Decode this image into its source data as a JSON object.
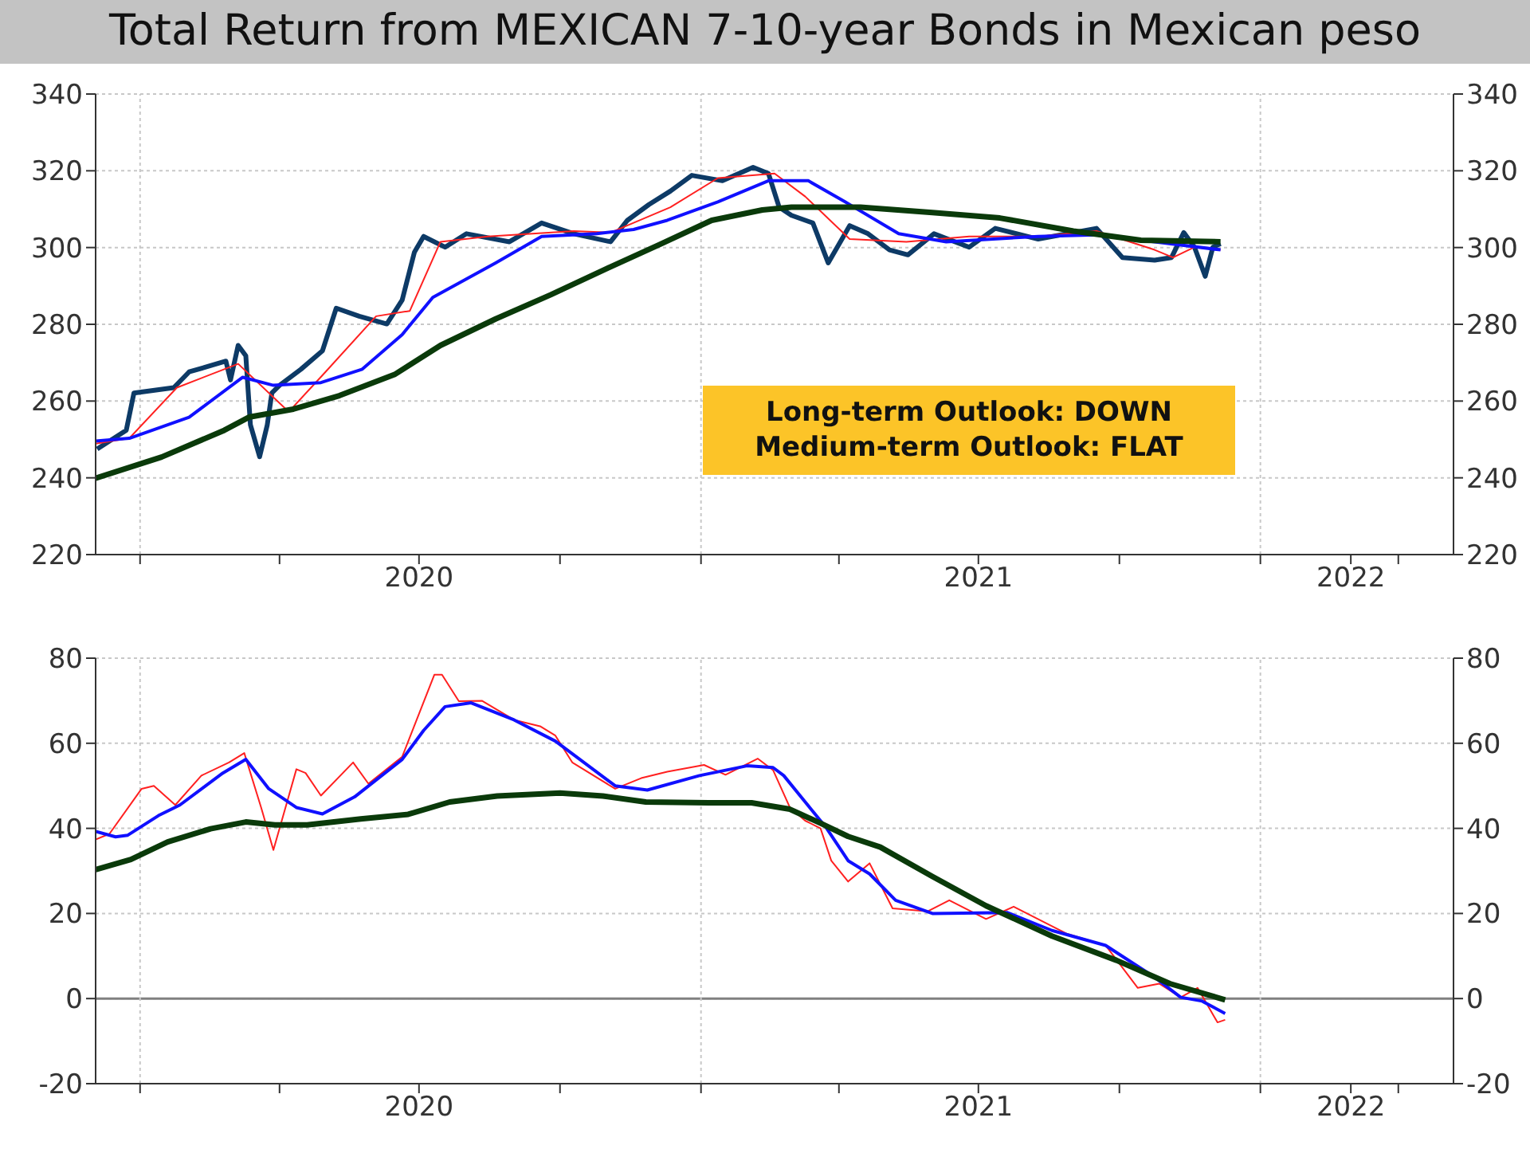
{
  "chart_data": [
    {
      "type": "line",
      "title": "Total Return from MEXICAN 7-10-year Bonds in Mexican peso",
      "annotations": [
        "Long-term Outlook: DOWN",
        "Medium-term Outlook: FLAT"
      ],
      "xlim": [
        "2019-12-03",
        "2022-05-07"
      ],
      "xticks": [
        {
          "value": "2020-01-01",
          "label": null
        },
        {
          "value": "2020-04-01",
          "label": null
        },
        {
          "value": "2020-07-01",
          "label": "2020"
        },
        {
          "value": "2020-10-01",
          "label": null
        },
        {
          "value": "2021-01-01",
          "label": null
        },
        {
          "value": "2021-04-01",
          "label": null
        },
        {
          "value": "2021-07-01",
          "label": "2021"
        },
        {
          "value": "2021-10-01",
          "label": null
        },
        {
          "value": "2022-01-01",
          "label": null
        },
        {
          "value": "2022-03-01",
          "label": "2022"
        },
        {
          "value": "2022-04-01",
          "label": null
        }
      ],
      "ylim": [
        220,
        340
      ],
      "yticks": [
        220,
        240,
        260,
        280,
        300,
        320,
        340
      ],
      "y2lim": [
        220,
        340
      ],
      "y2ticks": [
        220,
        240,
        260,
        280,
        300,
        320,
        340
      ],
      "grid": "y",
      "legend": false,
      "ref_lines": [
        {
          "axis": "x",
          "value": "2020-01-01",
          "color": "#c8c8c8",
          "line_style": "dotted"
        },
        {
          "axis": "x",
          "value": "2021-01-01",
          "color": "#c8c8c8",
          "line_style": "dotted"
        },
        {
          "axis": "x",
          "value": "2022-01-01",
          "color": "#c8c8c8",
          "line_style": "dotted"
        }
      ],
      "series": [
        {
          "color": "#0d3a66",
          "x": [
            "2019-12-04",
            "2019-12-23",
            "2019-12-28",
            "2020-01-23",
            "2020-02-02",
            "2020-02-26",
            "2020-02-29",
            "2020-03-05",
            "2020-03-10",
            "2020-03-13",
            "2020-03-19",
            "2020-03-24",
            "2020-03-27",
            "2020-04-01",
            "2020-04-15",
            "2020-04-29",
            "2020-05-08",
            "2020-05-23",
            "2020-06-10",
            "2020-06-20",
            "2020-06-28",
            "2020-07-04",
            "2020-07-18",
            "2020-08-01",
            "2020-08-29",
            "2020-09-19",
            "2020-10-10",
            "2020-11-03",
            "2020-11-14",
            "2020-11-28",
            "2020-12-12",
            "2020-12-26",
            "2021-01-15",
            "2021-02-04",
            "2021-02-14",
            "2021-02-21",
            "2021-03-01",
            "2021-03-15",
            "2021-03-25",
            "2021-04-08",
            "2021-04-20",
            "2021-05-04",
            "2021-05-16",
            "2021-06-02",
            "2021-06-25",
            "2021-07-12",
            "2021-08-09",
            "2021-09-16",
            "2021-10-03",
            "2021-10-24",
            "2021-11-04",
            "2021-11-12",
            "2021-11-19",
            "2021-11-26",
            "2021-12-01",
            "2021-12-06"
          ],
          "values": [
            247.5,
            252.4,
            262.1,
            263.5,
            267.6,
            270.4,
            265.5,
            274.5,
            271.8,
            253.8,
            245.5,
            253.8,
            262.1,
            264.1,
            268.3,
            273.1,
            284.2,
            282.1,
            280.1,
            286.3,
            298.8,
            302.9,
            300.1,
            303.6,
            301.5,
            306.4,
            303.6,
            301.5,
            307.1,
            311.2,
            314.7,
            318.8,
            317.4,
            320.9,
            319.3,
            310.5,
            308.4,
            306.4,
            296,
            305.7,
            303.6,
            299.4,
            298.1,
            303.6,
            300.1,
            305,
            302.2,
            305,
            297.4,
            296.7,
            297.4,
            303.9,
            300.1,
            292.5,
            300.1,
            301
          ]
        },
        {
          "color": "#ff2020",
          "x": [
            "2019-12-03",
            "2019-12-25",
            "2020-01-25",
            "2020-03-05",
            "2020-04-07",
            "2020-05-01",
            "2020-06-03",
            "2020-06-25",
            "2020-07-15",
            "2020-08-15",
            "2020-10-10",
            "2020-11-03",
            "2020-12-12",
            "2021-01-12",
            "2021-02-18",
            "2021-03-10",
            "2021-04-08",
            "2021-05-15",
            "2021-06-25",
            "2021-08-09",
            "2021-09-16",
            "2021-10-24",
            "2021-11-05",
            "2021-11-19",
            "2021-12-06"
          ],
          "values": [
            248.9,
            250.3,
            263.5,
            269.7,
            257.2,
            267.6,
            282.1,
            283.5,
            301.5,
            302.9,
            304.3,
            303.9,
            310.5,
            318.1,
            319.3,
            313.3,
            302.2,
            301.5,
            302.9,
            302.9,
            304.3,
            299.4,
            297.4,
            300.1,
            299.4
          ]
        },
        {
          "color": "#1010ff",
          "x": [
            "2019-12-03",
            "2019-12-25",
            "2020-02-02",
            "2020-03-08",
            "2020-03-28",
            "2020-04-28",
            "2020-05-25",
            "2020-06-20",
            "2020-07-10",
            "2020-08-20",
            "2020-09-19",
            "2020-10-25",
            "2020-11-18",
            "2020-12-10",
            "2021-01-12",
            "2021-02-14",
            "2021-03-12",
            "2021-04-05",
            "2021-05-10",
            "2021-06-10",
            "2021-08-09",
            "2021-09-16",
            "2021-10-24",
            "2021-12-06"
          ],
          "values": [
            249.6,
            250.3,
            255.8,
            266.2,
            264.1,
            264.8,
            268.3,
            277.3,
            287,
            296,
            302.9,
            303.6,
            304.7,
            307.1,
            311.9,
            317.4,
            317.4,
            311.9,
            303.6,
            301.5,
            302.9,
            303.3,
            301.5,
            299.4
          ]
        },
        {
          "color": "#0a3a0a",
          "x": [
            "2019-12-03",
            "2020-01-15",
            "2020-02-25",
            "2020-03-12",
            "2020-04-10",
            "2020-05-10",
            "2020-06-15",
            "2020-07-15",
            "2020-08-20",
            "2020-09-25",
            "2020-11-01",
            "2020-12-05",
            "2021-01-08",
            "2021-02-10",
            "2021-03-01",
            "2021-04-15",
            "2021-06-01",
            "2021-07-15",
            "2021-09-01",
            "2021-10-15",
            "2021-12-06"
          ],
          "values": [
            239.9,
            245.4,
            252.4,
            255.8,
            257.9,
            261.4,
            266.9,
            274.5,
            281.4,
            287.7,
            294.6,
            300.8,
            307.1,
            309.8,
            310.5,
            310.5,
            309.1,
            307.7,
            304.3,
            301.9,
            301.5
          ]
        }
      ]
    },
    {
      "type": "line",
      "xlim": [
        "2019-12-03",
        "2022-05-07"
      ],
      "xticks": [
        {
          "value": "2020-01-01",
          "label": null
        },
        {
          "value": "2020-04-01",
          "label": null
        },
        {
          "value": "2020-07-01",
          "label": "2020"
        },
        {
          "value": "2020-10-01",
          "label": null
        },
        {
          "value": "2021-01-01",
          "label": null
        },
        {
          "value": "2021-04-01",
          "label": null
        },
        {
          "value": "2021-07-01",
          "label": "2021"
        },
        {
          "value": "2021-10-01",
          "label": null
        },
        {
          "value": "2022-01-01",
          "label": null
        },
        {
          "value": "2022-03-01",
          "label": "2022"
        },
        {
          "value": "2022-04-01",
          "label": null
        }
      ],
      "ylim": [
        -20,
        80
      ],
      "yticks": [
        -20,
        0,
        20,
        40,
        60,
        80
      ],
      "y2lim": [
        -20,
        80
      ],
      "y2ticks": [
        -20,
        0,
        20,
        40,
        60,
        80
      ],
      "grid": "y",
      "legend": false,
      "ref_lines": [
        {
          "axis": "y",
          "value": 0,
          "color": "#808080",
          "line_style": "solid"
        },
        {
          "axis": "x",
          "value": "2020-01-01",
          "color": "#c8c8c8",
          "line_style": "dotted"
        },
        {
          "axis": "x",
          "value": "2021-01-01",
          "color": "#c8c8c8",
          "line_style": "dotted"
        },
        {
          "axis": "x",
          "value": "2022-01-01",
          "color": "#c8c8c8",
          "line_style": "dotted"
        }
      ],
      "series": [
        {
          "color": "#ff2020",
          "x": [
            "2019-12-03",
            "2019-12-12",
            "2020-01-02",
            "2020-01-10",
            "2020-01-24",
            "2020-02-10",
            "2020-02-28",
            "2020-03-09",
            "2020-03-20",
            "2020-03-28",
            "2020-04-12",
            "2020-04-18",
            "2020-04-28",
            "2020-05-19",
            "2020-05-29",
            "2020-06-20",
            "2020-07-11",
            "2020-07-16",
            "2020-07-27",
            "2020-08-11",
            "2020-09-01",
            "2020-09-18",
            "2020-09-28",
            "2020-10-09",
            "2020-11-06",
            "2020-11-23",
            "2020-12-10",
            "2021-01-03",
            "2021-01-17",
            "2021-02-07",
            "2021-02-17",
            "2021-02-28",
            "2021-03-10",
            "2021-03-20",
            "2021-03-27",
            "2021-04-07",
            "2021-04-21",
            "2021-05-06",
            "2021-05-29",
            "2021-06-12",
            "2021-07-06",
            "2021-07-24",
            "2021-08-28",
            "2021-09-22",
            "2021-10-13",
            "2021-10-27",
            "2021-11-10",
            "2021-11-21",
            "2021-12-04",
            "2021-12-09"
          ],
          "values": [
            37.4,
            38.7,
            49.3,
            50,
            45.5,
            52.4,
            55.5,
            57.7,
            44.9,
            34.9,
            53.9,
            53,
            47.7,
            55.5,
            50.5,
            56.8,
            76.1,
            76.1,
            69.9,
            70,
            65.5,
            64,
            61.8,
            55.5,
            49.3,
            51.8,
            53.3,
            54.9,
            52.6,
            56.4,
            53.7,
            44.9,
            41.8,
            40,
            32.4,
            27.5,
            31.8,
            21.2,
            20.5,
            23.1,
            18.7,
            21.6,
            15.2,
            12.5,
            2.5,
            3.5,
            0.3,
            2.5,
            -5.6,
            -5
          ]
        },
        {
          "color": "#1010ff",
          "x": [
            "2019-12-03",
            "2019-12-16",
            "2019-12-24",
            "2020-01-13",
            "2020-01-27",
            "2020-02-24",
            "2020-03-10",
            "2020-03-25",
            "2020-04-12",
            "2020-04-29",
            "2020-05-20",
            "2020-06-20",
            "2020-07-04",
            "2020-07-18",
            "2020-08-04",
            "2020-09-01",
            "2020-09-28",
            "2020-11-06",
            "2020-11-27",
            "2020-12-31",
            "2021-01-31",
            "2021-02-17",
            "2021-02-24",
            "2021-03-10",
            "2021-03-24",
            "2021-04-07",
            "2021-04-21",
            "2021-05-08",
            "2021-06-01",
            "2021-07-20",
            "2021-08-18",
            "2021-09-22",
            "2021-10-24",
            "2021-11-10",
            "2021-11-24",
            "2021-12-09"
          ],
          "values": [
            39.3,
            38,
            38.4,
            43,
            45.5,
            53,
            56.2,
            49.3,
            44.9,
            43.4,
            47.4,
            56.2,
            63,
            68.6,
            69.5,
            65.5,
            60.5,
            50,
            49,
            52.4,
            54.7,
            54.3,
            52.4,
            46.2,
            40,
            32.4,
            29.3,
            23.1,
            20,
            20.2,
            16,
            12.5,
            5,
            0.3,
            -0.6,
            -3.5
          ]
        },
        {
          "color": "#0a3a0a",
          "x": [
            "2019-12-03",
            "2019-12-26",
            "2020-01-19",
            "2020-02-16",
            "2020-03-10",
            "2020-03-29",
            "2020-04-19",
            "2020-05-24",
            "2020-06-24",
            "2020-07-21",
            "2020-08-21",
            "2020-10-01",
            "2020-10-29",
            "2020-11-26",
            "2021-01-06",
            "2021-02-03",
            "2021-02-28",
            "2021-03-20",
            "2021-04-07",
            "2021-04-28",
            "2021-06-01",
            "2021-07-06",
            "2021-08-18",
            "2021-09-29",
            "2021-11-03",
            "2021-12-09"
          ],
          "values": [
            30.3,
            32.7,
            36.8,
            39.9,
            41.5,
            40.8,
            40.8,
            42.2,
            43.3,
            46.2,
            47.6,
            48.3,
            47.6,
            46.2,
            46,
            46,
            44.5,
            41.2,
            38.1,
            35.6,
            28.7,
            21.8,
            14.7,
            9,
            3.5,
            -0.3
          ]
        }
      ]
    }
  ]
}
